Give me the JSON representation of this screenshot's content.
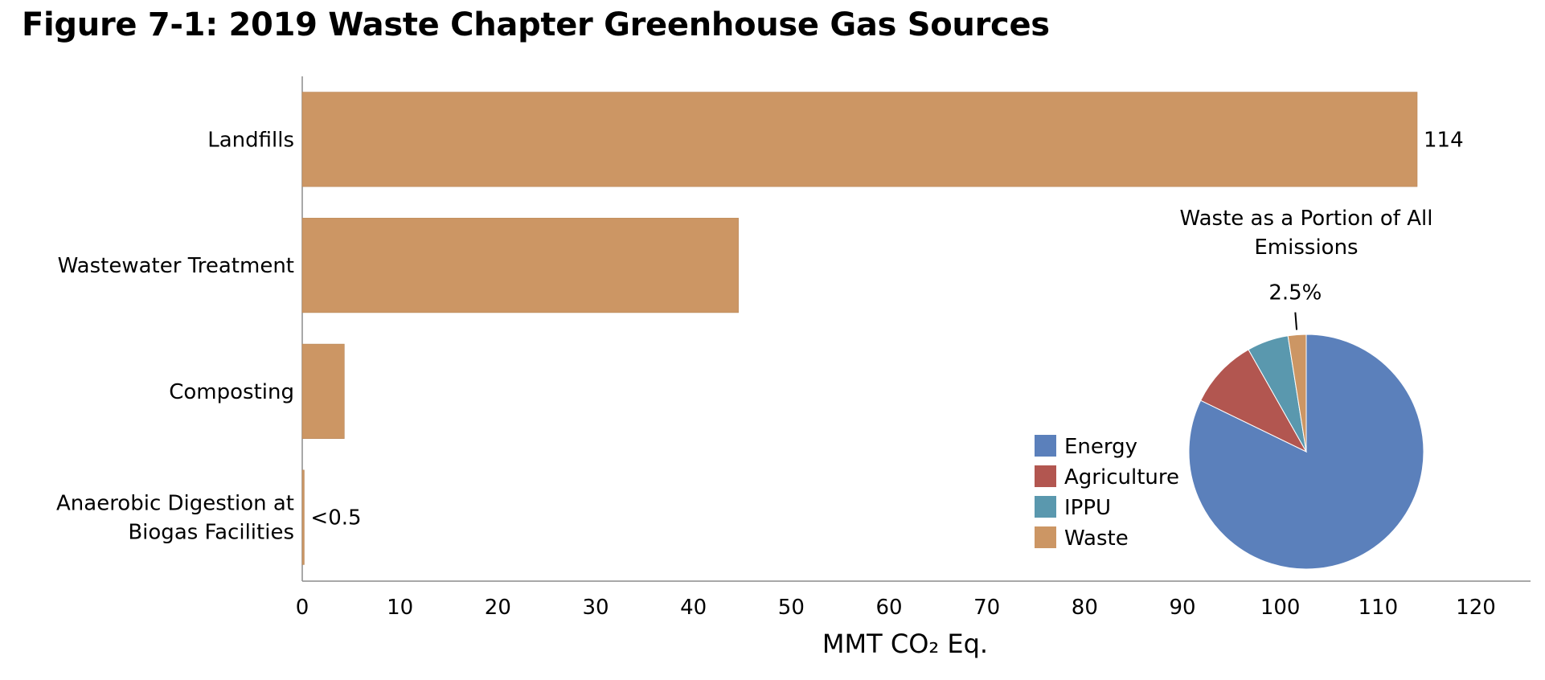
{
  "figure_title": "Figure 7-1:  2019 Waste Chapter Greenhouse Gas Sources",
  "chart_data": [
    {
      "type": "bar",
      "orientation": "horizontal",
      "categories": [
        "Landfills",
        "Wastewater Treatment",
        "Composting",
        "Anaerobic Digestion at Biogas Facilities"
      ],
      "category_lines": [
        [
          "Landfills"
        ],
        [
          "Wastewater Treatment"
        ],
        [
          "Composting"
        ],
        [
          "Anaerobic Digestion at",
          "Biogas Facilities"
        ]
      ],
      "values": [
        114,
        44.6,
        4.3,
        0.2
      ],
      "data_labels": [
        "114",
        "",
        "",
        "<0.5"
      ],
      "xlabel": "MMT CO₂ Eq.",
      "ylabel": "",
      "xlim": [
        0,
        120
      ],
      "xticks": [
        0,
        10,
        20,
        30,
        40,
        50,
        60,
        70,
        80,
        90,
        100,
        110,
        120
      ],
      "grid": false,
      "color": "#CC9664"
    },
    {
      "type": "pie",
      "title_lines": [
        "Waste as a Portion of All",
        "Emissions"
      ],
      "categories": [
        "Energy",
        "Agriculture",
        "IPPU",
        "Waste"
      ],
      "values": [
        82.2,
        9.6,
        5.7,
        2.5
      ],
      "colors": [
        "#5B80BB",
        "#B25650",
        "#5A98AE",
        "#CC9664"
      ],
      "data_labels": [
        "",
        "",
        "",
        "2.5%"
      ],
      "legend_position": "left"
    }
  ]
}
